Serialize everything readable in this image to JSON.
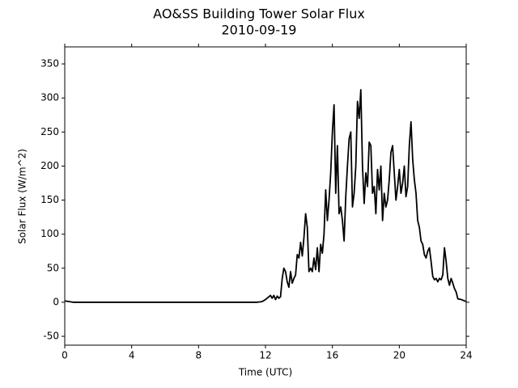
{
  "chart_data": {
    "type": "line",
    "title": "AO&SS Building Tower Solar Flux",
    "subtitle": "2010-09-19",
    "x_label": "Time (UTC)",
    "y_label": "Solar Flux (W/m^2)",
    "xlim": [
      0,
      24
    ],
    "xticks": [
      0,
      4,
      8,
      12,
      16,
      20,
      24
    ],
    "ylim": [
      -63,
      375
    ],
    "yticks": [
      -50,
      0,
      50,
      100,
      150,
      200,
      250,
      300,
      350
    ],
    "grid": false,
    "series": [
      {
        "name": "Solar Flux",
        "color": "#000000",
        "x": [
          0,
          0.5,
          11.5,
          11.8,
          12,
          12.2,
          12.3,
          12.4,
          12.5,
          12.6,
          12.7,
          12.8,
          12.9,
          13.0,
          13.1,
          13.2,
          13.3,
          13.4,
          13.5,
          13.6,
          13.7,
          13.8,
          13.9,
          14.0,
          14.1,
          14.2,
          14.3,
          14.4,
          14.5,
          14.6,
          14.7,
          14.8,
          14.9,
          15.0,
          15.1,
          15.2,
          15.3,
          15.4,
          15.5,
          15.6,
          15.7,
          15.8,
          15.9,
          16.0,
          16.1,
          16.2,
          16.3,
          16.4,
          16.5,
          16.6,
          16.7,
          16.8,
          16.9,
          17.0,
          17.1,
          17.2,
          17.3,
          17.4,
          17.5,
          17.6,
          17.7,
          17.8,
          17.9,
          18.0,
          18.1,
          18.2,
          18.3,
          18.4,
          18.5,
          18.6,
          18.7,
          18.8,
          18.9,
          19.0,
          19.1,
          19.2,
          19.3,
          19.4,
          19.5,
          19.6,
          19.7,
          19.8,
          19.9,
          20.0,
          20.1,
          20.2,
          20.3,
          20.4,
          20.5,
          20.6,
          20.7,
          20.8,
          20.9,
          21.0,
          21.1,
          21.2,
          21.3,
          21.4,
          21.5,
          21.6,
          21.7,
          21.8,
          21.9,
          22.0,
          22.1,
          22.2,
          22.3,
          22.4,
          22.5,
          22.6,
          22.7,
          22.8,
          22.9,
          23.0,
          23.1,
          23.2,
          23.3,
          23.4,
          23.5,
          23.7,
          24
        ],
        "values": [
          2,
          0,
          0,
          1,
          4,
          8,
          10,
          6,
          10,
          4,
          9,
          6,
          8,
          35,
          50,
          45,
          30,
          22,
          45,
          28,
          35,
          40,
          70,
          65,
          88,
          68,
          95,
          130,
          110,
          45,
          50,
          45,
          65,
          48,
          80,
          45,
          85,
          72,
          100,
          165,
          120,
          150,
          190,
          250,
          290,
          160,
          230,
          130,
          140,
          120,
          90,
          155,
          200,
          240,
          250,
          140,
          160,
          200,
          295,
          270,
          312,
          200,
          145,
          190,
          170,
          235,
          230,
          160,
          170,
          130,
          195,
          165,
          200,
          120,
          160,
          140,
          150,
          180,
          220,
          230,
          190,
          150,
          170,
          195,
          160,
          175,
          200,
          155,
          170,
          230,
          265,
          210,
          180,
          160,
          120,
          110,
          90,
          85,
          70,
          65,
          75,
          80,
          60,
          38,
          33,
          35,
          30,
          35,
          33,
          40,
          80,
          60,
          35,
          25,
          35,
          28,
          20,
          15,
          5,
          4,
          1
        ]
      }
    ]
  }
}
